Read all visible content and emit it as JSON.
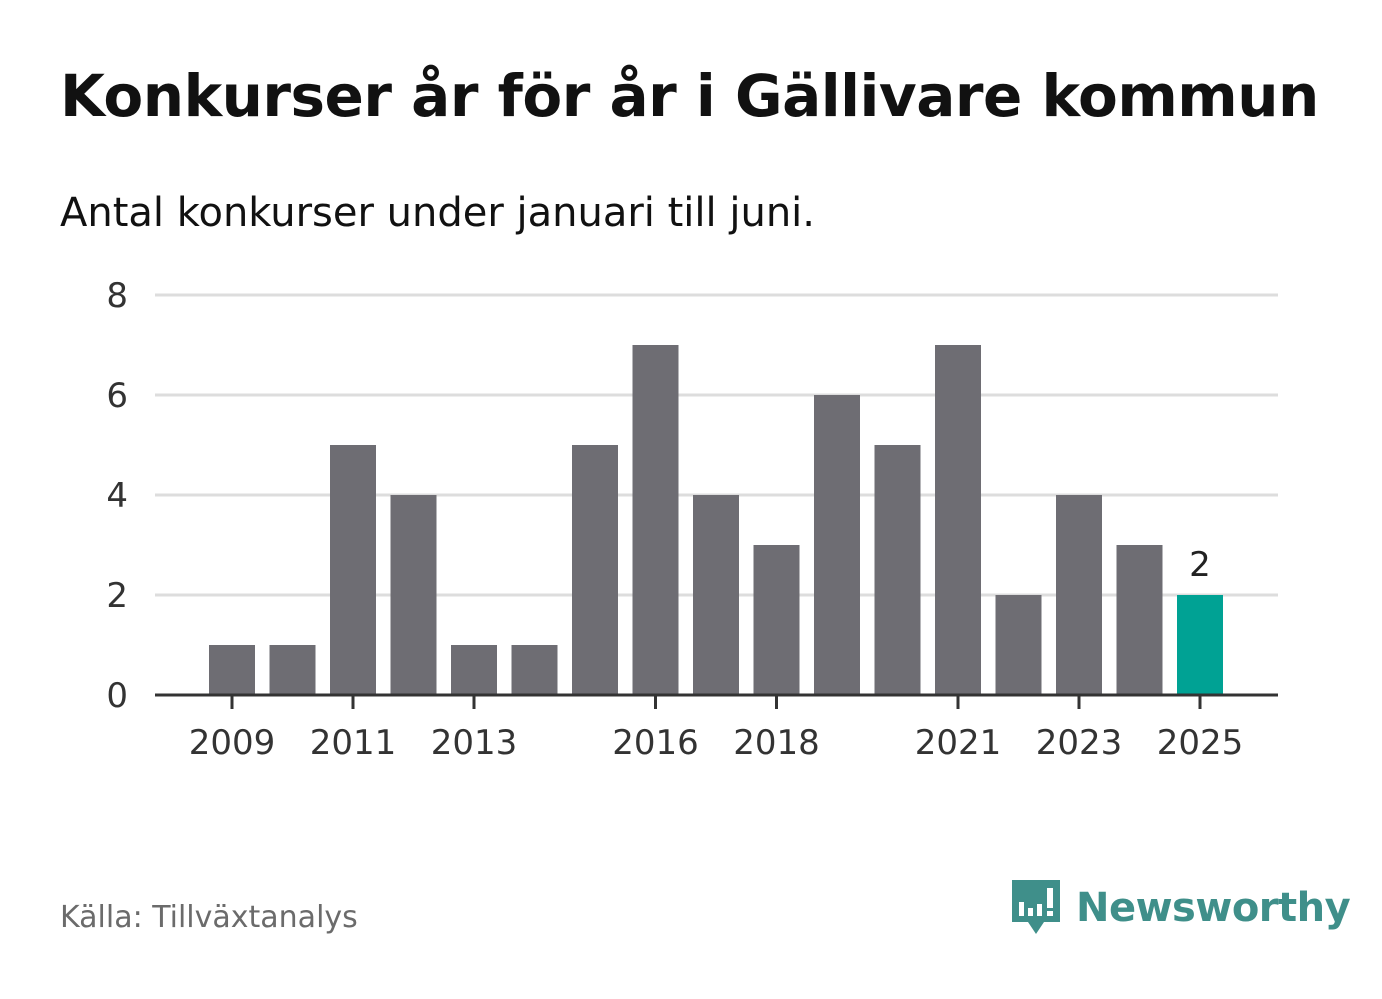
{
  "title": "Konkurser år för år i Gällivare kommun",
  "subtitle": "Antal konkurser under januari till juni.",
  "source": "Källa: Tillväxtanalys",
  "brand": {
    "name": "Newsworthy",
    "icon": "newsworthy-logo-icon",
    "color": "#3f8f8a"
  },
  "colors": {
    "bar": "#6e6d73",
    "highlight": "#00a294",
    "grid": "#dddddd",
    "axis": "#333333"
  },
  "chart_data": {
    "type": "bar",
    "title": "Konkurser år för år i Gällivare kommun",
    "subtitle": "Antal konkurser under januari till juni.",
    "categories": [
      "2009",
      "2010",
      "2011",
      "2012",
      "2013",
      "2014",
      "2015",
      "2016",
      "2017",
      "2018",
      "2019",
      "2020",
      "2021",
      "2022",
      "2023",
      "2024",
      "2025"
    ],
    "values": [
      1,
      1,
      5,
      4,
      1,
      1,
      5,
      7,
      4,
      3,
      6,
      5,
      7,
      2,
      4,
      3,
      2
    ],
    "x_tick_labels": [
      "2009",
      "2011",
      "2013",
      "2016",
      "2018",
      "2021",
      "2023",
      "2025"
    ],
    "y_ticks": [
      0,
      2,
      4,
      6,
      8
    ],
    "ylim": [
      0,
      8
    ],
    "xlabel": "",
    "ylabel": "",
    "grid": true,
    "highlight": {
      "category": "2025",
      "label": "2"
    }
  }
}
